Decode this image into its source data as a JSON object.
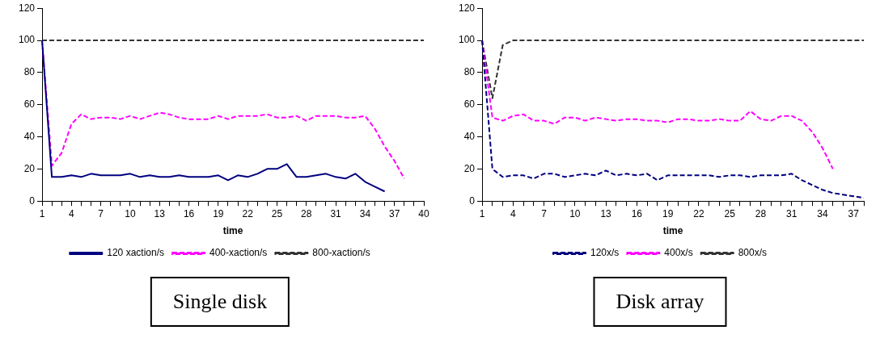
{
  "chart_data": [
    {
      "type": "line",
      "xlabel": "time",
      "categories": [
        "1",
        null,
        null,
        "4",
        null,
        null,
        "7",
        null,
        null,
        "10",
        null,
        null,
        "13",
        null,
        null,
        "16",
        null,
        null,
        "19",
        null,
        null,
        "22",
        null,
        null,
        "25",
        null,
        null,
        "28",
        null,
        null,
        "31",
        null,
        null,
        "34",
        null,
        null,
        "37",
        null,
        null,
        "40"
      ],
      "series": [
        {
          "name": "120 xaction/s",
          "color": "#000080",
          "line_style": "solid",
          "values": [
            100,
            15,
            15,
            16,
            15,
            17,
            16,
            16,
            16,
            17,
            15,
            16,
            15,
            15,
            16,
            15,
            15,
            15,
            16,
            13,
            16,
            15,
            17,
            20,
            20,
            23,
            15,
            15,
            16,
            17,
            15,
            14,
            17,
            12,
            9,
            6,
            null,
            null,
            null,
            null
          ]
        },
        {
          "name": "400-xaction/s",
          "color": "#ff00ff",
          "line_style": "dashed",
          "values": [
            100,
            22,
            30,
            48,
            54,
            51,
            52,
            52,
            51,
            53,
            51,
            53,
            55,
            54,
            52,
            51,
            51,
            51,
            53,
            51,
            53,
            53,
            53,
            54,
            52,
            52,
            53,
            50,
            53,
            53,
            53,
            52,
            52,
            53,
            45,
            34,
            25,
            14,
            null,
            null
          ]
        },
        {
          "name": "800-xaction/s",
          "color": "#333333",
          "line_style": "dashed",
          "values": [
            100,
            100,
            100,
            100,
            100,
            100,
            100,
            100,
            100,
            100,
            100,
            100,
            100,
            100,
            100,
            100,
            100,
            100,
            100,
            100,
            100,
            100,
            100,
            100,
            100,
            100,
            100,
            100,
            100,
            100,
            100,
            100,
            100,
            100,
            100,
            100,
            100,
            100,
            100,
            100
          ]
        }
      ],
      "ylim": [
        0,
        120
      ],
      "yticks": [
        0,
        20,
        40,
        60,
        80,
        100,
        120
      ],
      "grid": false,
      "legend": "bottom",
      "marker": "none",
      "annotations": [
        "Single disk"
      ]
    },
    {
      "type": "line",
      "xlabel": "time",
      "categories": [
        "1",
        null,
        null,
        "4",
        null,
        null,
        "7",
        null,
        null,
        "10",
        null,
        null,
        "13",
        null,
        null,
        "16",
        null,
        null,
        "19",
        null,
        null,
        "22",
        null,
        null,
        "25",
        null,
        null,
        "28",
        null,
        null,
        "31",
        null,
        null,
        "34",
        null,
        null,
        "37",
        null
      ],
      "series": [
        {
          "name": "120x/s",
          "color": "#000080",
          "line_style": "dashed",
          "values": [
            100,
            20,
            15,
            16,
            16,
            14,
            17,
            17,
            15,
            16,
            17,
            16,
            19,
            16,
            17,
            16,
            17,
            13,
            16,
            16,
            16,
            16,
            16,
            15,
            16,
            16,
            15,
            16,
            16,
            16,
            17,
            13,
            10,
            7,
            5,
            4,
            3,
            2
          ]
        },
        {
          "name": "400x/s",
          "color": "#ff00ff",
          "line_style": "dashed",
          "values": [
            100,
            52,
            50,
            53,
            54,
            50,
            50,
            48,
            52,
            52,
            50,
            52,
            51,
            50,
            51,
            51,
            50,
            50,
            49,
            51,
            51,
            50,
            50,
            51,
            50,
            50,
            56,
            51,
            50,
            53,
            53,
            50,
            43,
            33,
            20,
            null,
            null,
            null
          ]
        },
        {
          "name": "800x/s",
          "color": "#333333",
          "line_style": "dashed",
          "values": [
            100,
            64,
            97,
            100,
            100,
            100,
            100,
            100,
            100,
            100,
            100,
            100,
            100,
            100,
            100,
            100,
            100,
            100,
            100,
            100,
            100,
            100,
            100,
            100,
            100,
            100,
            100,
            100,
            100,
            100,
            100,
            100,
            100,
            100,
            100,
            100,
            100,
            100
          ]
        }
      ],
      "ylim": [
        0,
        120
      ],
      "yticks": [
        0,
        20,
        40,
        60,
        80,
        100,
        120
      ],
      "grid": false,
      "legend": "bottom",
      "marker": "none",
      "annotations": [
        "Disk array"
      ]
    }
  ]
}
